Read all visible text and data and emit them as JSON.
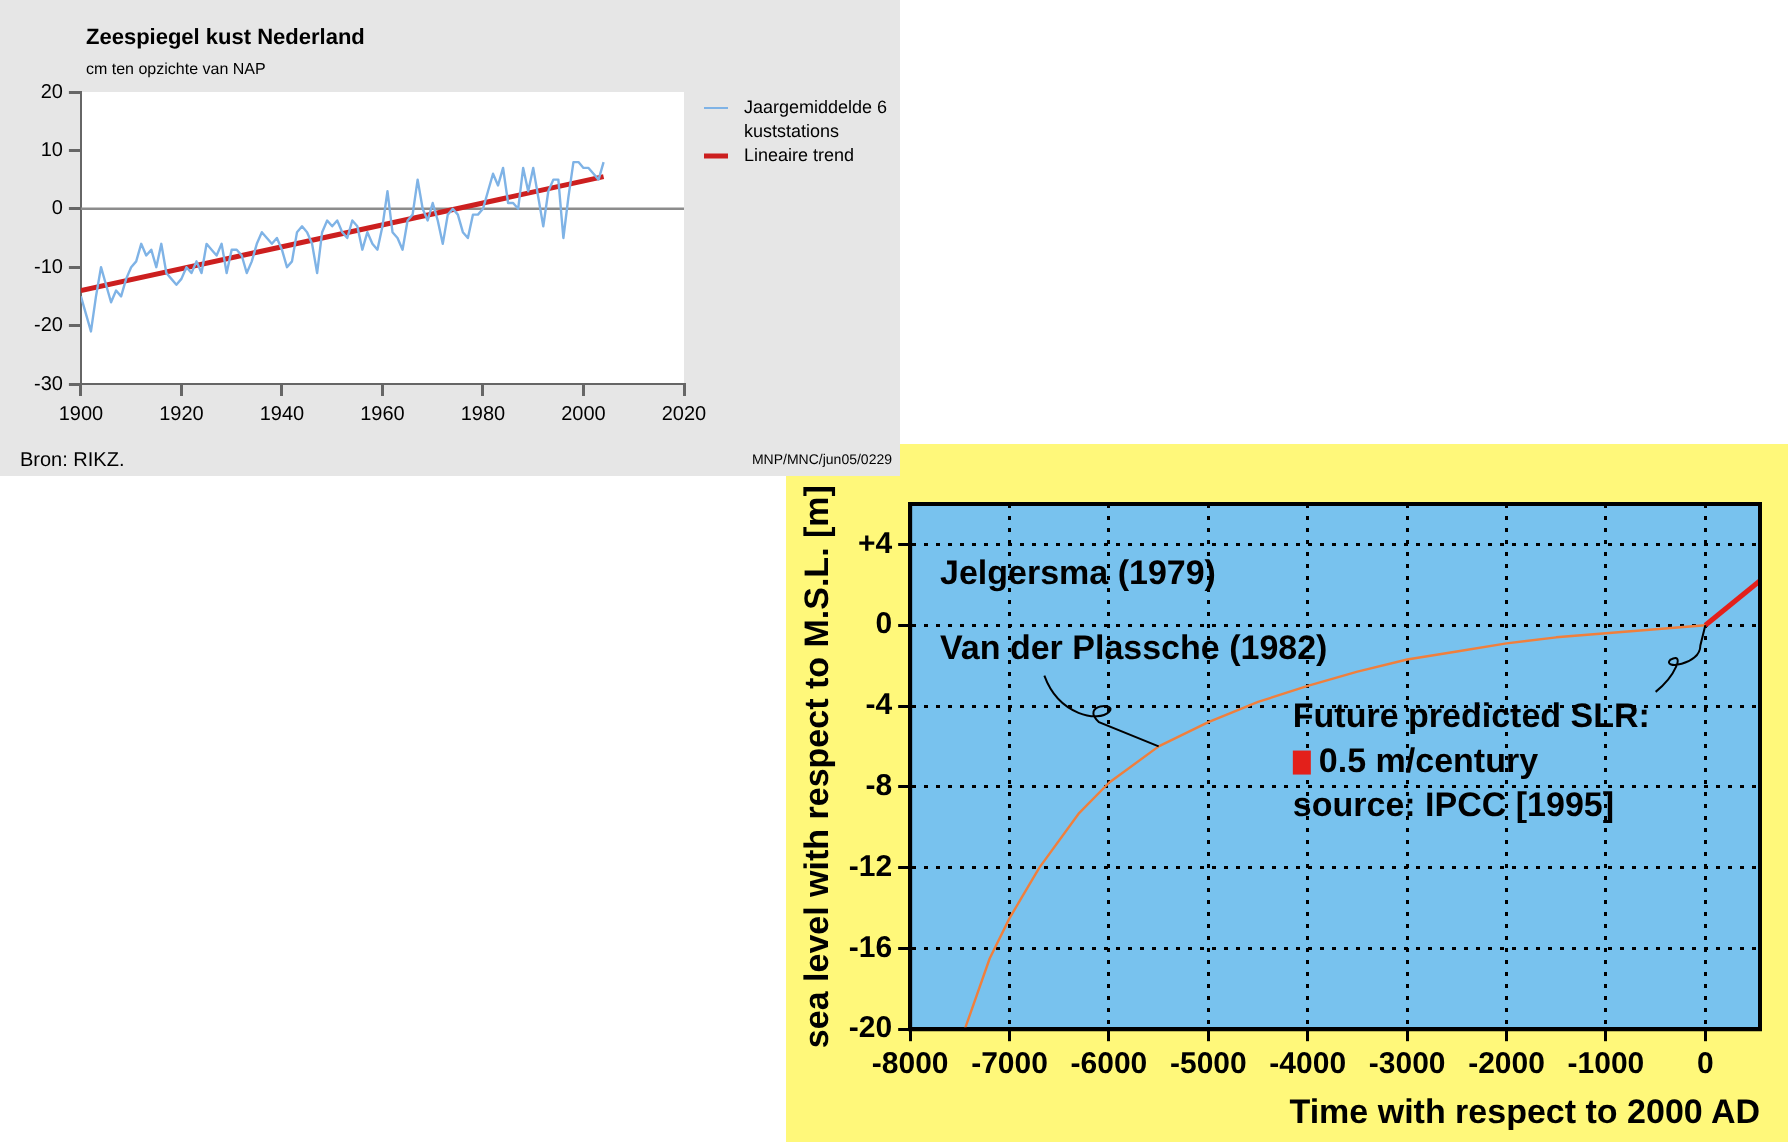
{
  "chart_data": [
    {
      "type": "line",
      "title": "Zeespiegel kust Nederland",
      "subtitle": "cm ten opzichte van NAP",
      "xlim": [
        1900,
        2020
      ],
      "xticks": [
        1900,
        1920,
        1940,
        1960,
        1980,
        2000,
        2020
      ],
      "ylim": [
        -30,
        20
      ],
      "yticks": [
        -30,
        -20,
        -10,
        0,
        10,
        20
      ],
      "grid": false,
      "legend": "right",
      "marker": "none",
      "ref_lines": [
        {
          "axis": "y",
          "value": 0,
          "color": "#8c8c8c"
        }
      ],
      "annotations": [
        "Bron: RIKZ.",
        "MNP/MNC/jun05/0229"
      ],
      "series": [
        {
          "name": "Jaargemiddelde 6 kuststations",
          "color": "#7fb3e6",
          "x": [
            1900,
            1901,
            1902,
            1903,
            1904,
            1905,
            1906,
            1907,
            1908,
            1909,
            1910,
            1911,
            1912,
            1913,
            1914,
            1915,
            1916,
            1917,
            1918,
            1919,
            1920,
            1921,
            1922,
            1923,
            1924,
            1925,
            1926,
            1927,
            1928,
            1929,
            1930,
            1931,
            1932,
            1933,
            1934,
            1935,
            1936,
            1937,
            1938,
            1939,
            1940,
            1941,
            1942,
            1943,
            1944,
            1945,
            1946,
            1947,
            1948,
            1949,
            1950,
            1951,
            1952,
            1953,
            1954,
            1955,
            1956,
            1957,
            1958,
            1959,
            1960,
            1961,
            1962,
            1963,
            1964,
            1965,
            1966,
            1967,
            1968,
            1969,
            1970,
            1971,
            1972,
            1973,
            1974,
            1975,
            1976,
            1977,
            1978,
            1979,
            1980,
            1981,
            1982,
            1983,
            1984,
            1985,
            1986,
            1987,
            1988,
            1989,
            1990,
            1991,
            1992,
            1993,
            1994,
            1995,
            1996,
            1997,
            1998,
            1999,
            2000,
            2001,
            2002,
            2003,
            2004
          ],
          "values": [
            -15,
            -18,
            -21,
            -15,
            -10,
            -13,
            -16,
            -14,
            -15,
            -12,
            -10,
            -9,
            -6,
            -8,
            -7,
            -10,
            -6,
            -11,
            -12,
            -13,
            -12,
            -10,
            -11,
            -9,
            -11,
            -6,
            -7,
            -8,
            -6,
            -11,
            -7,
            -7,
            -8,
            -11,
            -9,
            -6,
            -4,
            -5,
            -6,
            -5,
            -7,
            -10,
            -9,
            -4,
            -3,
            -4,
            -6,
            -11,
            -4,
            -2,
            -3,
            -2,
            -4,
            -5,
            -2,
            -3,
            -7,
            -4,
            -6,
            -7,
            -3,
            3,
            -4,
            -5,
            -7,
            -2,
            -1,
            5,
            0,
            -2,
            1,
            -2,
            -6,
            -1,
            0,
            -1,
            -4,
            -5,
            -1,
            -1,
            0,
            3,
            6,
            4,
            7,
            1,
            1,
            0,
            7,
            3,
            7,
            2,
            -3,
            3,
            5,
            5,
            -5,
            2,
            8,
            8,
            7,
            7,
            6,
            5,
            8
          ]
        },
        {
          "name": "Lineaire trend",
          "color": "#cc1f1f",
          "x": [
            1900,
            2004
          ],
          "values": [
            -14,
            5.5
          ]
        }
      ]
    },
    {
      "type": "line",
      "xlabel": "Time with respect to 2000 AD",
      "ylabel": "sea level with respect to M.S.L. [m]",
      "xlim": [
        -8000,
        550
      ],
      "xticks": [
        -8000,
        -7000,
        -6000,
        -5000,
        -4000,
        -3000,
        -2000,
        -1000,
        0
      ],
      "ylim": [
        -20,
        6
      ],
      "yticks": [
        -20,
        -16,
        -12,
        -8,
        -4,
        0,
        {
          "value": 4,
          "label": "+4"
        }
      ],
      "grid": true,
      "legend": "center",
      "marker": "none",
      "annotations": [
        "Jelgersma (1979)",
        {
          "text": "Van der Plassche (1982)",
          "x": -5500,
          "y": -6
        },
        {
          "text": "Future predicted SLR:",
          "x": 0,
          "y": 0
        },
        "source: IPCC [1995]"
      ],
      "series": [
        {
          "color": "#f07f3c",
          "x": [
            -7450,
            -7200,
            -7000,
            -6700,
            -6300,
            -6000,
            -5500,
            -5000,
            -4500,
            -4000,
            -3500,
            -3000,
            -2500,
            -2000,
            -1500,
            -1000,
            -500,
            0
          ],
          "values": [
            -20,
            -16.5,
            -14.5,
            -12,
            -9.3,
            -7.8,
            -6,
            -4.8,
            -3.8,
            -3,
            -2.3,
            -1.7,
            -1.3,
            -0.9,
            -0.6,
            -0.4,
            -0.2,
            0
          ]
        },
        {
          "name": "0.5 m/century",
          "color": "#e3201b",
          "x": [
            0,
            550
          ],
          "values": [
            0,
            2.2
          ]
        }
      ]
    }
  ]
}
